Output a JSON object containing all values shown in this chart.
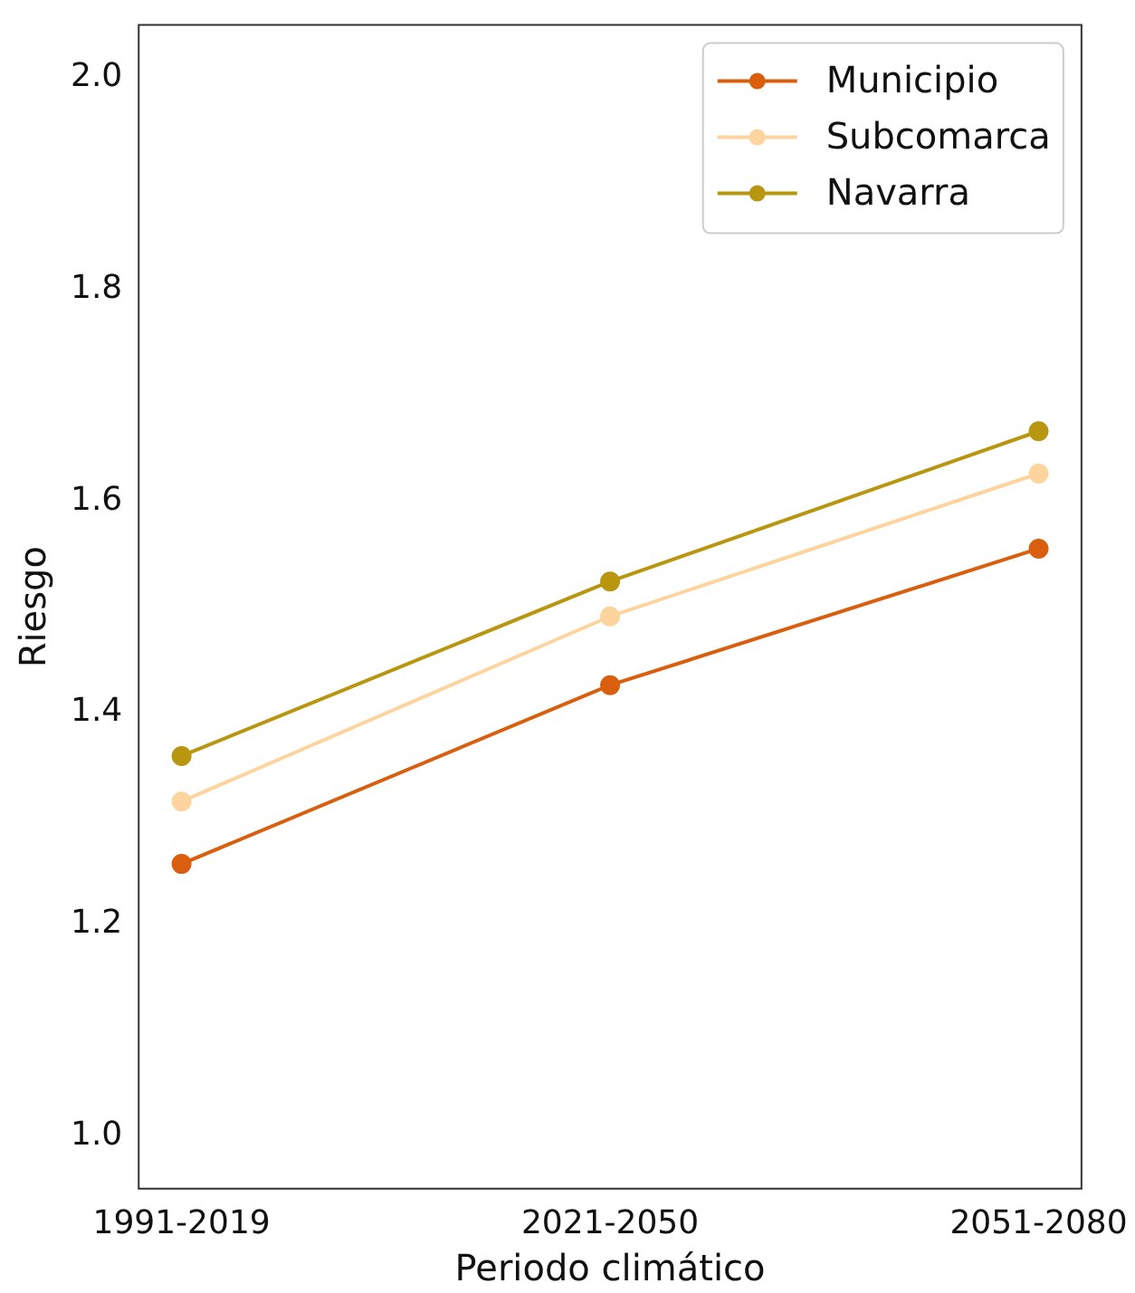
{
  "chart_data": {
    "type": "line",
    "xlabel": "Periodo climático",
    "ylabel": "Riesgo",
    "categories": [
      "1991-2019",
      "2021-2050",
      "2051-2080"
    ],
    "series": [
      {
        "name": "Municipio",
        "color": "#d95f0e",
        "values": [
          1.257,
          1.426,
          1.555
        ]
      },
      {
        "name": "Subcomarca",
        "color": "#fdd49e",
        "values": [
          1.316,
          1.491,
          1.626
        ]
      },
      {
        "name": "Navarra",
        "color": "#b8960f",
        "values": [
          1.359,
          1.524,
          1.666
        ]
      }
    ],
    "ylim": [
      0.95,
      2.05
    ],
    "yticks": [
      {
        "value": 1.0,
        "label": "1.0"
      },
      {
        "value": 1.2,
        "label": "1.2"
      },
      {
        "value": 1.4,
        "label": "1.4"
      },
      {
        "value": 1.6,
        "label": "1.6"
      },
      {
        "value": 1.8,
        "label": "1.8"
      },
      {
        "value": 2.0,
        "label": "2.0"
      }
    ],
    "grid": false,
    "legend": "top right",
    "marker": "circle",
    "line_style": "solid"
  }
}
